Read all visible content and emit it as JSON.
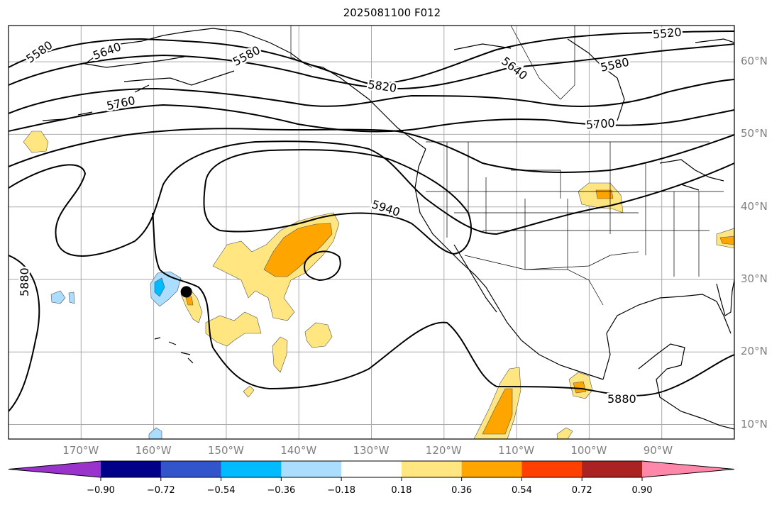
{
  "title": "2025081100 F012",
  "map": {
    "projection": "equirectangular",
    "lon_range": [
      -180,
      -80
    ],
    "lat_range": [
      8,
      65
    ],
    "grid": true,
    "lon_ticks": [
      {
        "value": -170,
        "label": "170°W"
      },
      {
        "value": -160,
        "label": "160°W"
      },
      {
        "value": -150,
        "label": "150°W"
      },
      {
        "value": -140,
        "label": "140°W"
      },
      {
        "value": -130,
        "label": "130°W"
      },
      {
        "value": -120,
        "label": "120°W"
      },
      {
        "value": -110,
        "label": "110°W"
      },
      {
        "value": -100,
        "label": "100°W"
      },
      {
        "value": -90,
        "label": "90°W"
      }
    ],
    "lat_ticks": [
      {
        "value": 60,
        "label": "60°N"
      },
      {
        "value": 50,
        "label": "50°N"
      },
      {
        "value": 40,
        "label": "40°N"
      },
      {
        "value": 30,
        "label": "30°N"
      },
      {
        "value": 20,
        "label": "20°N"
      },
      {
        "value": 10,
        "label": "10°N"
      }
    ],
    "contour_labels": [
      "5520",
      "5580",
      "5640",
      "5700",
      "5760",
      "5820",
      "5880",
      "5940",
      "5580",
      "5640",
      "5580",
      "5880"
    ],
    "marker": {
      "lon": -155.5,
      "lat": 28.3,
      "color": "#000000"
    }
  },
  "colorbar": {
    "extend": "both",
    "colors": [
      "#9933cc",
      "#000088",
      "#3355cc",
      "#00bbff",
      "#aaddff",
      "#ffffff",
      "#ffe680",
      "#ffa500",
      "#ff4000",
      "#aa2222",
      "#ff88aa"
    ],
    "tick_labels": [
      "−0.90",
      "−0.72",
      "−0.54",
      "−0.36",
      "−0.18",
      "0.18",
      "0.36",
      "0.54",
      "0.72",
      "0.90"
    ]
  }
}
